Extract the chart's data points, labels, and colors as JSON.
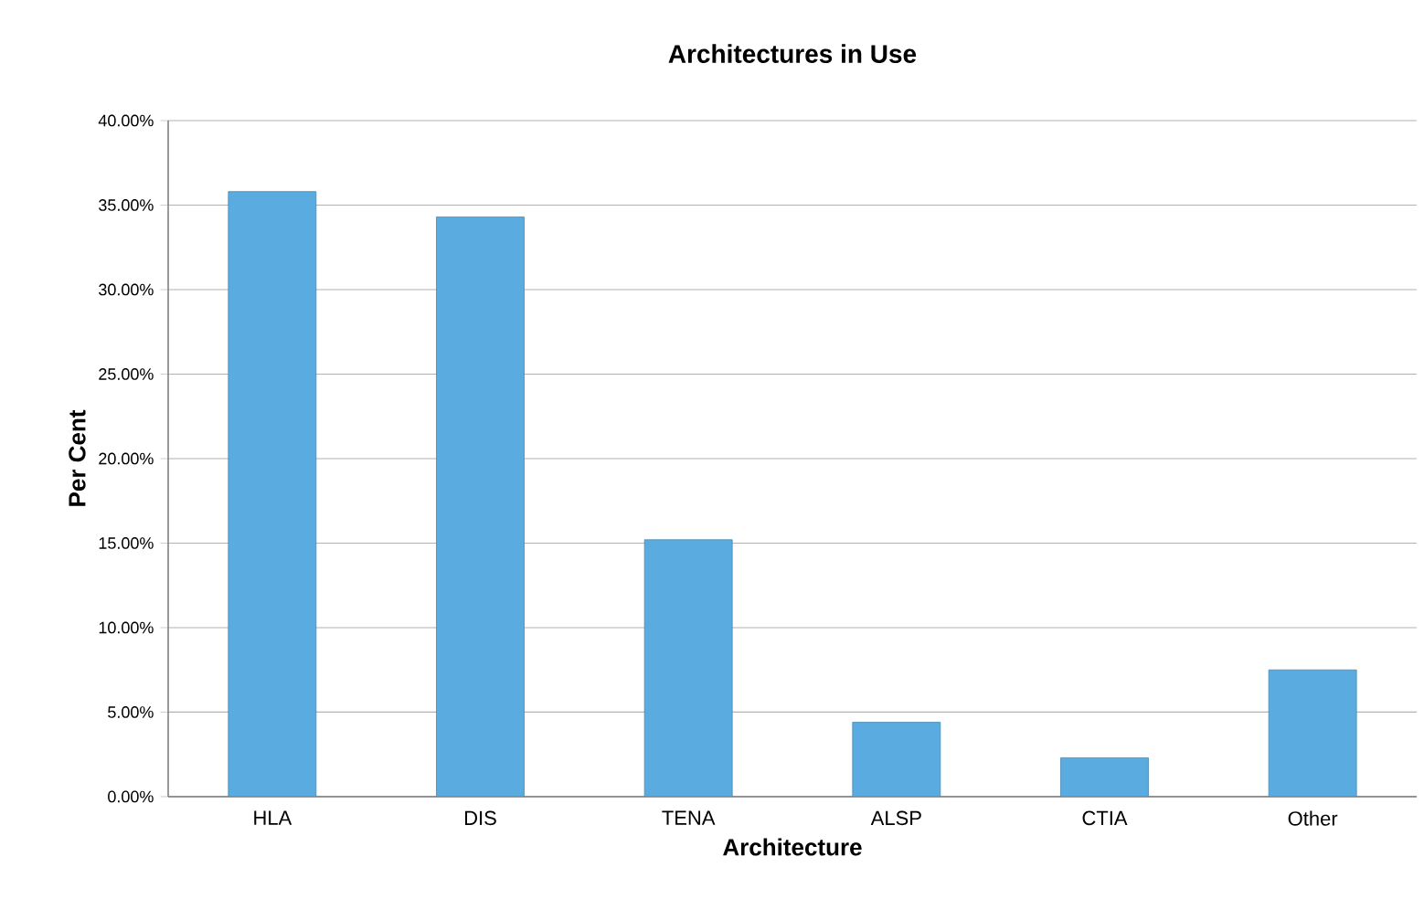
{
  "chart_data": {
    "type": "bar",
    "title": "Architectures in Use",
    "xlabel": "Architecture",
    "ylabel": "Per Cent",
    "categories": [
      "HLA",
      "DIS",
      "TENA",
      "ALSP",
      "CTIA",
      "Other"
    ],
    "values": [
      35.8,
      34.3,
      15.2,
      4.4,
      2.3,
      7.5
    ],
    "color": "#5aabe0",
    "ylim": [
      0,
      40
    ],
    "yticks": [
      {
        "value": 0,
        "label": "0.00%"
      },
      {
        "value": 5,
        "label": "5.00%"
      },
      {
        "value": 10,
        "label": "10.00%"
      },
      {
        "value": 15,
        "label": "15.00%"
      },
      {
        "value": 20,
        "label": "20.00%"
      },
      {
        "value": 25,
        "label": "25.00%"
      },
      {
        "value": 30,
        "label": "30.00%"
      },
      {
        "value": 35,
        "label": "35.00%"
      },
      {
        "value": 40,
        "label": "40.00%"
      }
    ],
    "grid": "y"
  }
}
